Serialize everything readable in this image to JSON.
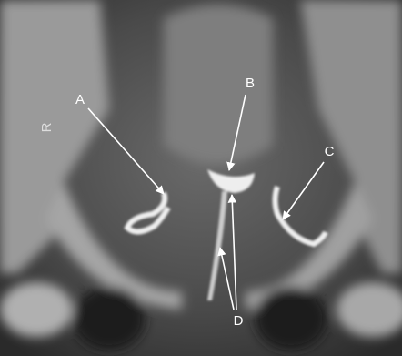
{
  "side_marker": "R",
  "annotations": [
    {
      "label": "A"
    },
    {
      "label": "B"
    },
    {
      "label": "C"
    },
    {
      "label": "D"
    }
  ]
}
